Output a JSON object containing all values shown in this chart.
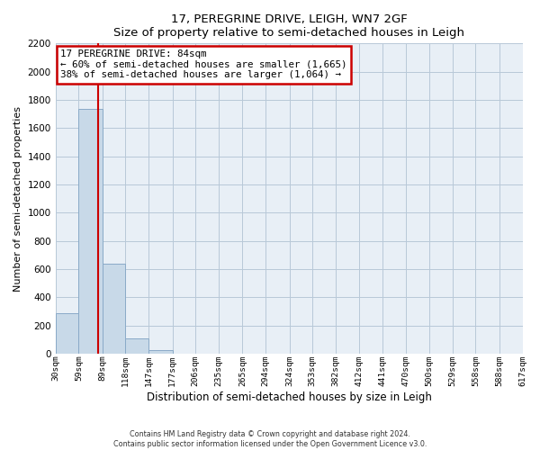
{
  "title": "17, PEREGRINE DRIVE, LEIGH, WN7 2GF",
  "subtitle": "Size of property relative to semi-detached houses in Leigh",
  "xlabel": "Distribution of semi-detached houses by size in Leigh",
  "ylabel": "Number of semi-detached properties",
  "bar_edges": [
    30,
    59,
    89,
    118,
    147,
    177,
    206,
    235,
    265,
    294,
    324,
    353,
    382,
    412,
    441,
    470,
    500,
    529,
    558,
    588,
    617
  ],
  "bar_heights": [
    290,
    1735,
    640,
    110,
    25,
    0,
    0,
    0,
    0,
    0,
    0,
    0,
    0,
    0,
    0,
    0,
    0,
    0,
    0,
    0
  ],
  "bar_color": "#c8d9e8",
  "bar_edge_color": "#8aaac8",
  "property_size": 84,
  "property_line_color": "#cc0000",
  "annotation_box_edge_color": "#cc0000",
  "annotation_title": "17 PEREGRINE DRIVE: 84sqm",
  "annotation_line1": "← 60% of semi-detached houses are smaller (1,665)",
  "annotation_line2": "38% of semi-detached houses are larger (1,064) →",
  "ylim": [
    0,
    2200
  ],
  "yticks": [
    0,
    200,
    400,
    600,
    800,
    1000,
    1200,
    1400,
    1600,
    1800,
    2000,
    2200
  ],
  "footer_line1": "Contains HM Land Registry data © Crown copyright and database right 2024.",
  "footer_line2": "Contains public sector information licensed under the Open Government Licence v3.0.",
  "bg_color": "#ffffff",
  "plot_bg_color": "#e8eff6",
  "grid_color": "#b8c8d8",
  "tick_labels": [
    "30sqm",
    "59sqm",
    "89sqm",
    "118sqm",
    "147sqm",
    "177sqm",
    "206sqm",
    "235sqm",
    "265sqm",
    "294sqm",
    "324sqm",
    "353sqm",
    "382sqm",
    "412sqm",
    "441sqm",
    "470sqm",
    "500sqm",
    "529sqm",
    "558sqm",
    "588sqm",
    "617sqm"
  ]
}
